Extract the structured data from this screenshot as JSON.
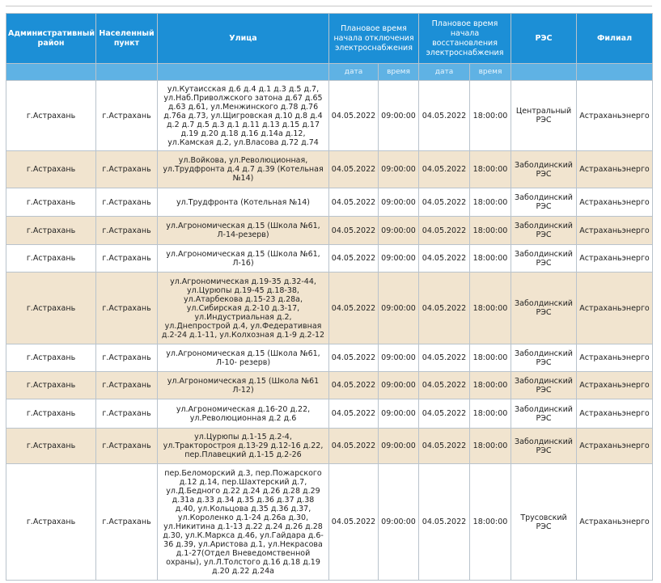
{
  "header": {
    "district": "Административный район",
    "locality": "Населенный пункт",
    "street": "Улица",
    "off_time": "Плановое время начала отключения электроснабжения",
    "on_time": "Плановое время начала восстановления электроснабжения",
    "res": "РЭС",
    "branch": "Филиал",
    "sub_date": "дата",
    "sub_time": "время"
  },
  "rows": [
    {
      "district": "г.Астрахань",
      "locality": "г.Астрахань",
      "street": "ул.Кутаисская д.6 д.4 д.1 д.3 д.5 д.7, ул.Наб.Приволжского затона д.67 д.65 д.63 д.61, ул.Менжинского д.78 д.76 д.76а д.73, ул.Щигровская д.10 д.8 д.4 д.2 д.7 д.5 д.3 д.1 д.11 д.13 д.15 д.17 д.19 д.20 д.18 д.16 д.14а д.12, ул.Камская д.2, ул.Власова д.72 д.74",
      "off_date": "04.05.2022",
      "off_time": "09:00:00",
      "on_date": "04.05.2022",
      "on_time": "18:00:00",
      "res": "Центральный РЭС",
      "branch": "Астраханьэнерго"
    },
    {
      "district": "г.Астрахань",
      "locality": "г.Астрахань",
      "street": "ул.Войкова, ул.Революционная, ул.Трудфронта д.4 д.7 д.39 (Котельная №14)",
      "off_date": "04.05.2022",
      "off_time": "09:00:00",
      "on_date": "04.05.2022",
      "on_time": "18:00:00",
      "res": "Заболдинский РЭС",
      "branch": "Астраханьэнерго"
    },
    {
      "district": "г.Астрахань",
      "locality": "г.Астрахань",
      "street": "ул.Трудфронта (Котельная №14)",
      "off_date": "04.05.2022",
      "off_time": "09:00:00",
      "on_date": "04.05.2022",
      "on_time": "18:00:00",
      "res": "Заболдинский РЭС",
      "branch": "Астраханьэнерго"
    },
    {
      "district": "г.Астрахань",
      "locality": "г.Астрахань",
      "street": "ул.Агрономическая д.15 (Школа №61, Л-14-резерв)",
      "off_date": "04.05.2022",
      "off_time": "09:00:00",
      "on_date": "04.05.2022",
      "on_time": "18:00:00",
      "res": "Заболдинский РЭС",
      "branch": "Астраханьэнерго"
    },
    {
      "district": "г.Астрахань",
      "locality": "г.Астрахань",
      "street": "ул.Агрономическая д.15 (Школа №61, Л-16)",
      "off_date": "04.05.2022",
      "off_time": "09:00:00",
      "on_date": "04.05.2022",
      "on_time": "18:00:00",
      "res": "Заболдинский РЭС",
      "branch": "Астраханьэнерго"
    },
    {
      "district": "г.Астрахань",
      "locality": "г.Астрахань",
      "street": "ул.Агрономическая д.19-35 д.32-44, ул.Цурюпы д.19-45 д.18-38, ул.Атарбекова д.15-23 д.28а, ул.Сибирская д.2-10 д.3-17, ул.Индустриальная д.2, ул.Днепрострой д.4, ул.Федеративная д.2-24 д.1-11, ул.Колхозная д.1-9 д.2-12",
      "off_date": "04.05.2022",
      "off_time": "09:00:00",
      "on_date": "04.05.2022",
      "on_time": "18:00:00",
      "res": "Заболдинский РЭС",
      "branch": "Астраханьэнерго"
    },
    {
      "district": "г.Астрахань",
      "locality": "г.Астрахань",
      "street": "ул.Агрономическая д.15 (Школа №61, Л-10- резерв)",
      "off_date": "04.05.2022",
      "off_time": "09:00:00",
      "on_date": "04.05.2022",
      "on_time": "18:00:00",
      "res": "Заболдинский РЭС",
      "branch": "Астраханьэнерго"
    },
    {
      "district": "г.Астрахань",
      "locality": "г.Астрахань",
      "street": "ул.Агрономическая д.15 (Школа №61 Л-12)",
      "off_date": "04.05.2022",
      "off_time": "09:00:00",
      "on_date": "04.05.2022",
      "on_time": "18:00:00",
      "res": "Заболдинский РЭС",
      "branch": "Астраханьэнерго"
    },
    {
      "district": "г.Астрахань",
      "locality": "г.Астрахань",
      "street": "ул.Агрономическая д.16-20 д.22, ул.Революционная д.2 д.6",
      "off_date": "04.05.2022",
      "off_time": "09:00:00",
      "on_date": "04.05.2022",
      "on_time": "18:00:00",
      "res": "Заболдинский РЭС",
      "branch": "Астраханьэнерго"
    },
    {
      "district": "г.Астрахань",
      "locality": "г.Астрахань",
      "street": "ул.Цурюпы д.1-15 д.2-4, ул.Тракторостроя д.13-29 д.12-16 д.22, пер.Плавецкий д.1-15 д.2-26",
      "off_date": "04.05.2022",
      "off_time": "09:00:00",
      "on_date": "04.05.2022",
      "on_time": "18:00:00",
      "res": "Заболдинский РЭС",
      "branch": "Астраханьэнерго"
    },
    {
      "district": "г.Астрахань",
      "locality": "г.Астрахань",
      "street": "пер.Беломорский д.3, пер.Пожарского д.12 д.14, пер.Шахтерский д.7, ул.Д.Бедного д.22 д.24 д.26 д.28 д.29 д.31а д.33 д.34 д.35 д.36 д.37 д.38 д.40, ул.Кольцова д.35 д.36 д.37, ул.Короленко д.1-24 д.26а д.30, ул.Никитина д.1-13 д.22 д.24 д.26 д.28 д.30, ул.К.Маркса д.46, ул.Гайдара д.6-36 д.39, ул.Аристова д.1, ул.Некрасова д.1-27(Отдел Вневедомственной охраны), ул.Л.Толстого д.16 д.18 д.19 д.20 д.22 д.24а",
      "off_date": "04.05.2022",
      "off_time": "09:00:00",
      "on_date": "04.05.2022",
      "on_time": "18:00:00",
      "res": "Трусовский РЭС",
      "branch": "Астраханьэнерго"
    }
  ]
}
